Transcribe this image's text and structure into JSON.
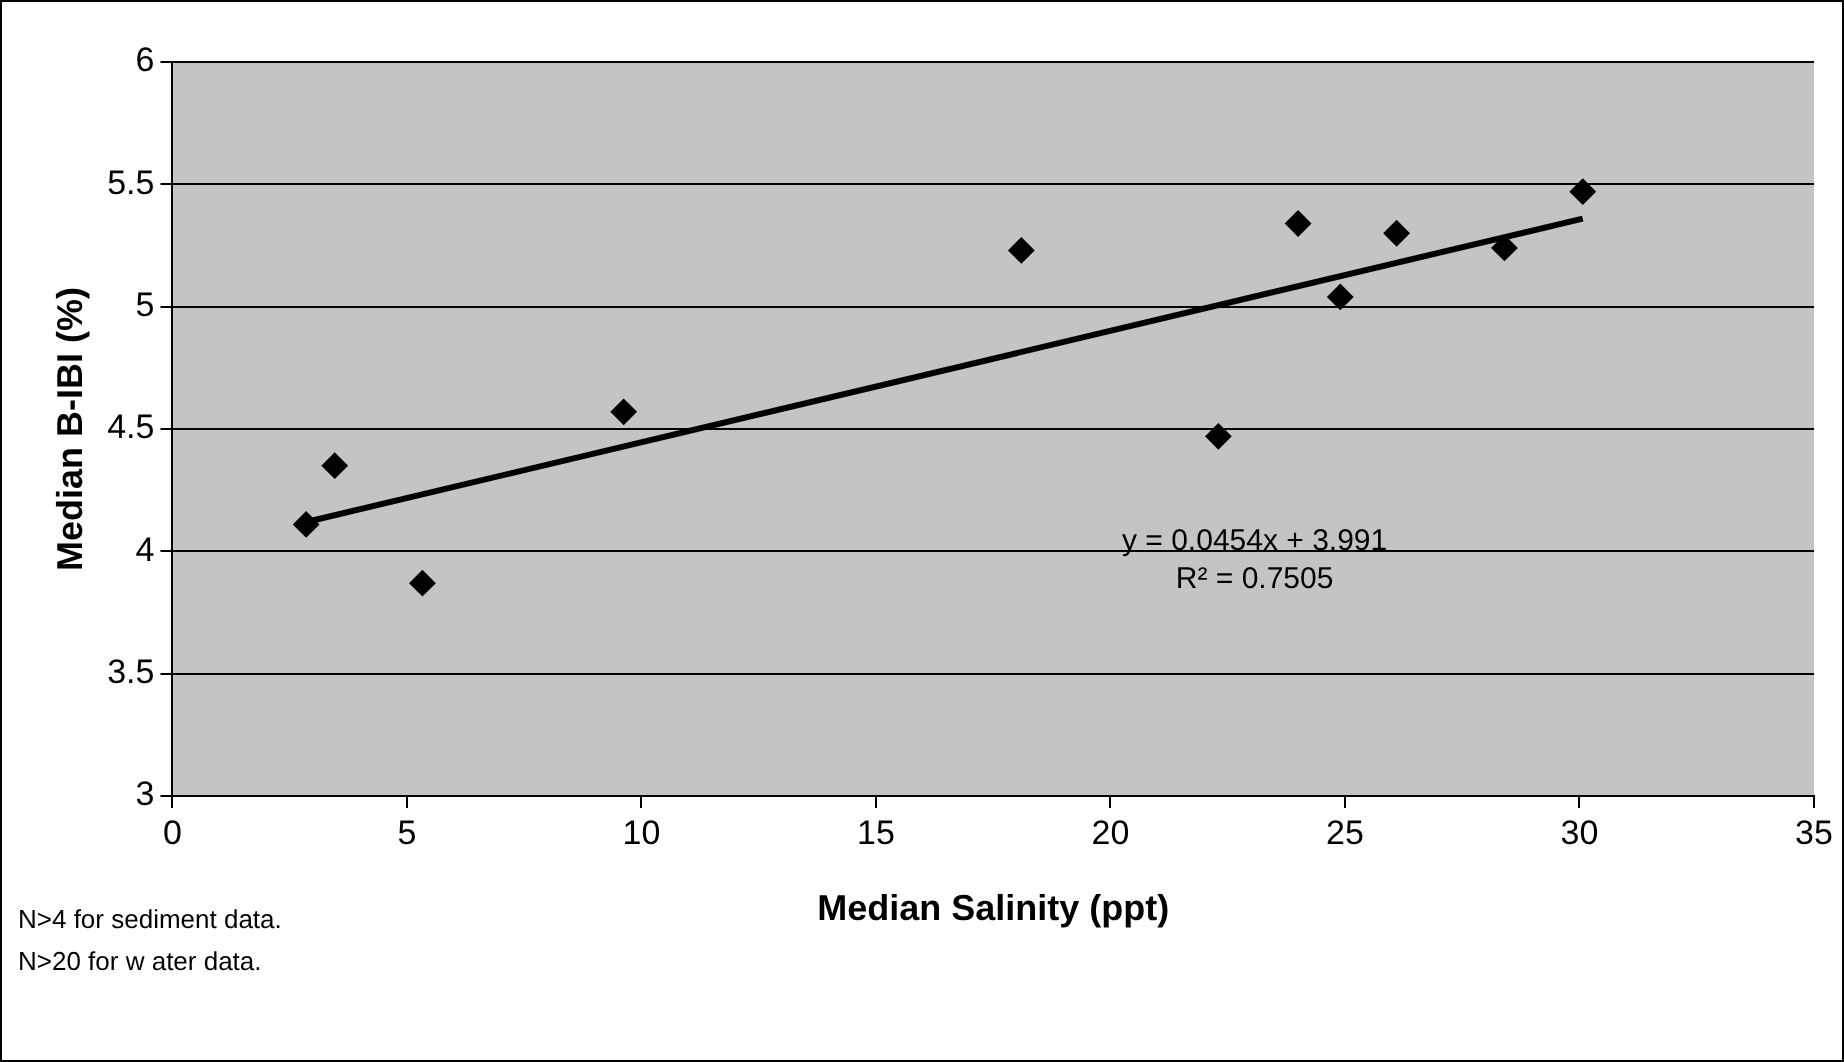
{
  "chart_data": {
    "type": "scatter",
    "xlabel": "Median Salinity (ppt)",
    "ylabel": "Median B-IBI (%)",
    "xlim": [
      0,
      35
    ],
    "xticks": [
      0,
      5,
      10,
      15,
      20,
      25,
      30,
      35
    ],
    "ylim": [
      3,
      6
    ],
    "yticks": [
      3,
      3.5,
      4,
      4.5,
      5,
      5.5,
      6
    ],
    "grid": "y",
    "series": [
      {
        "marker": "diamond",
        "color": "#000000",
        "x": [
          2.85,
          3.46,
          5.33,
          9.62,
          18.1,
          22.3,
          24.0,
          24.9,
          26.1,
          28.4,
          30.07
        ],
        "values": [
          4.11,
          4.35,
          3.87,
          4.57,
          5.23,
          4.47,
          5.34,
          5.04,
          5.3,
          5.24,
          5.47
        ]
      },
      {
        "type": "line",
        "marker": "none",
        "color": "#000000",
        "x": [
          2.85,
          30.07
        ],
        "values": [
          4.12,
          5.36
        ]
      }
    ],
    "annotations": [
      "y = 0.0454x + 3.991",
      "R² = 0.7505",
      "N>4 for sediment data.",
      "N>20 for w ater data."
    ]
  }
}
